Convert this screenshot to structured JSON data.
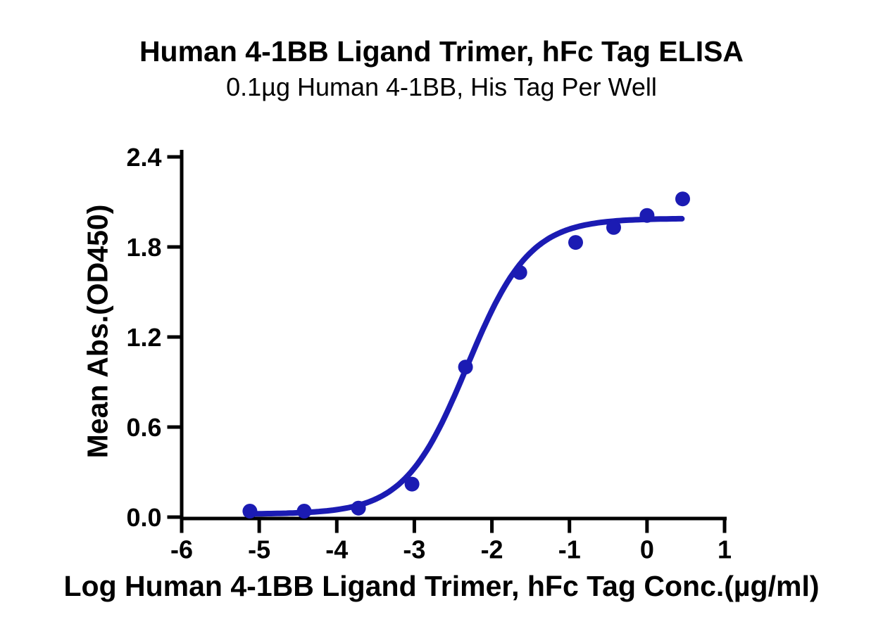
{
  "chart_data": {
    "type": "scatter",
    "title": "Human 4-1BB Ligand Trimer, hFc Tag ELISA",
    "subtitle": "0.1µg Human 4-1BB, His Tag Per Well",
    "xlabel": "Log Human 4-1BB Ligand Trimer, hFc Tag Conc.(µg/ml)",
    "ylabel": "Mean Abs.(OD450)",
    "xlim": [
      -6,
      1
    ],
    "ylim": [
      0,
      2.4
    ],
    "x_ticks": [
      -6,
      -5,
      -4,
      -3,
      -2,
      -1,
      0,
      1
    ],
    "x_tick_labels": [
      "-6",
      "-5",
      "-4",
      "-3",
      "-2",
      "-1",
      "0",
      "1"
    ],
    "y_ticks": [
      0,
      0.6,
      1.2,
      1.8,
      2.4
    ],
    "y_tick_labels": [
      "0.0",
      "0.6",
      "1.2",
      "1.8",
      "2.4"
    ],
    "grid": false,
    "legend": false,
    "axis_color": "#000000",
    "marker_color": "#1B1BB3",
    "line_color": "#1B1BB3",
    "series": [
      {
        "name": "Human 4-1BB Ligand Trimer, hFc Tag",
        "x": [
          -5.12,
          -4.42,
          -3.72,
          -3.03,
          -2.34,
          -1.64,
          -0.92,
          -0.43,
          0.0,
          0.46
        ],
        "y": [
          0.04,
          0.04,
          0.06,
          0.22,
          1.0,
          1.63,
          1.83,
          1.93,
          2.01,
          2.12
        ]
      }
    ],
    "fit_curve": {
      "model": "4PL",
      "bottom": 0.02,
      "top": 1.99,
      "log_ec50": -2.32,
      "hill_slope": 1.08,
      "x_start": -5.17,
      "x_end": 0.45
    }
  }
}
